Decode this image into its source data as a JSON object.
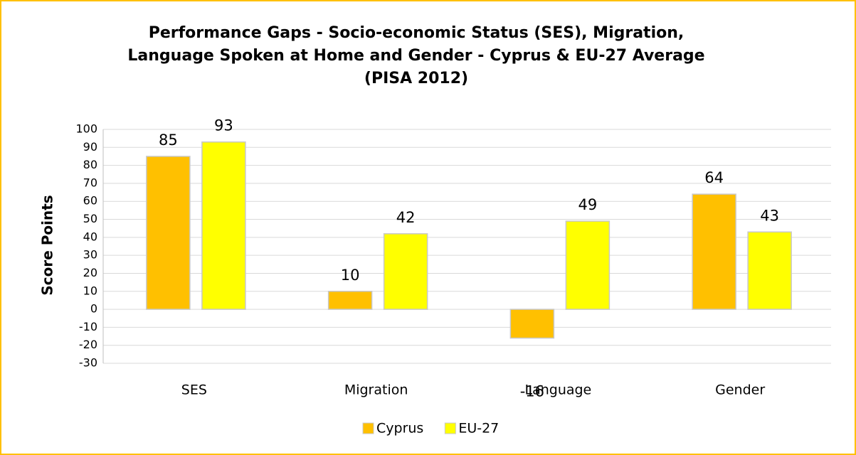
{
  "chart_data": {
    "type": "bar",
    "title": [
      "Performance Gaps - Socio-economic Status (SES), Migration,",
      "Language Spoken at Home and Gender - Cyprus & EU-27 Average",
      "(PISA 2012)"
    ],
    "y_label": "Score Points",
    "categories": [
      "SES",
      "Migration",
      "Language",
      "Gender"
    ],
    "series": [
      {
        "name": "Cyprus",
        "color": "#ffc000",
        "values": [
          85,
          10,
          -16,
          64
        ]
      },
      {
        "name": "EU-27",
        "color": "#ffff00",
        "values": [
          93,
          42,
          49,
          43
        ]
      }
    ],
    "ylim": [
      -30,
      100
    ],
    "yticks": [
      -30,
      -20,
      -10,
      0,
      10,
      20,
      30,
      40,
      50,
      60,
      70,
      80,
      90,
      100
    ],
    "grid": true,
    "legend": "bottom"
  }
}
